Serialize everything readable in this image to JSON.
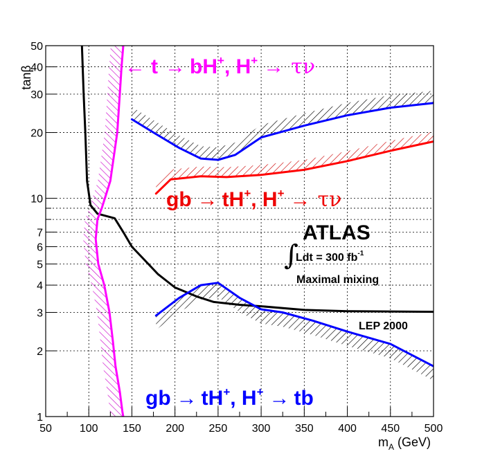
{
  "chart_data": {
    "type": "line",
    "xlabel_main": "m",
    "xlabel_sub": "A",
    "xlabel_unit": " (GeV)",
    "ylabel": "tanβ",
    "xlim": [
      50,
      500
    ],
    "ylim": [
      1,
      50
    ],
    "y_scale": "log",
    "grid": true,
    "x_ticks": [
      50,
      100,
      150,
      200,
      250,
      300,
      350,
      400,
      450,
      500
    ],
    "y_ticks": [
      1,
      2,
      3,
      4,
      5,
      6,
      7,
      10,
      20,
      30,
      40,
      50
    ],
    "series": [
      {
        "color": "#000000",
        "points": [
          [
            92,
            50
          ],
          [
            94,
            30
          ],
          [
            96,
            20
          ],
          [
            98,
            12
          ],
          [
            102,
            9.3
          ],
          [
            110,
            8.5
          ],
          [
            130,
            8.1
          ],
          [
            140,
            7
          ],
          [
            150,
            6
          ],
          [
            165,
            5.2
          ],
          [
            180,
            4.5
          ],
          [
            200,
            3.9
          ],
          [
            225,
            3.55
          ],
          [
            245,
            3.35
          ],
          [
            275,
            3.25
          ],
          [
            300,
            3.2
          ],
          [
            350,
            3.08
          ],
          [
            400,
            3.04
          ],
          [
            500,
            3.02
          ]
        ]
      },
      {
        "color": "#ff00ff",
        "points": [
          [
            140,
            50
          ],
          [
            138,
            40
          ],
          [
            136,
            30
          ],
          [
            133,
            20
          ],
          [
            125,
            12
          ],
          [
            115,
            9
          ],
          [
            110,
            8
          ],
          [
            108,
            6.5
          ],
          [
            111,
            5
          ],
          [
            118,
            4
          ],
          [
            124,
            3
          ],
          [
            128,
            2.2
          ],
          [
            131,
            1.7
          ],
          [
            136,
            1.3
          ],
          [
            139,
            1.05
          ],
          [
            140,
            1
          ]
        ]
      },
      {
        "color": "#0000ff",
        "points": [
          [
            150,
            23
          ],
          [
            175,
            20
          ],
          [
            205,
            17
          ],
          [
            230,
            15.2
          ],
          [
            250,
            15
          ],
          [
            270,
            15.8
          ],
          [
            300,
            19
          ],
          [
            350,
            21.5
          ],
          [
            400,
            24
          ],
          [
            450,
            26
          ],
          [
            500,
            27.3
          ]
        ]
      },
      {
        "color": "#ff0000",
        "points": [
          [
            178,
            10.5
          ],
          [
            195,
            12.2
          ],
          [
            230,
            12.6
          ],
          [
            260,
            12.5
          ],
          [
            300,
            12.8
          ],
          [
            350,
            13.5
          ],
          [
            400,
            14.8
          ],
          [
            450,
            16.5
          ],
          [
            500,
            18.2
          ]
        ]
      },
      {
        "color": "#0000ff",
        "points": [
          [
            178,
            2.9
          ],
          [
            205,
            3.5
          ],
          [
            230,
            4
          ],
          [
            250,
            4.1
          ],
          [
            275,
            3.5
          ],
          [
            300,
            3.1
          ],
          [
            325,
            3
          ],
          [
            360,
            2.75
          ],
          [
            400,
            2.45
          ],
          [
            450,
            2.15
          ],
          [
            500,
            1.7
          ]
        ]
      }
    ],
    "hatch_bands": [
      {
        "color": "#000000",
        "points": [
          [
            150,
            23
          ],
          [
            175,
            20
          ],
          [
            205,
            17
          ],
          [
            230,
            15.2
          ],
          [
            250,
            15
          ],
          [
            270,
            15.8
          ],
          [
            300,
            19
          ],
          [
            350,
            21.5
          ],
          [
            400,
            24
          ],
          [
            450,
            26
          ],
          [
            500,
            27.3
          ]
        ],
        "dy_factor": 1.14
      },
      {
        "color": "#cc0000",
        "points": [
          [
            178,
            10.5
          ],
          [
            195,
            12.2
          ],
          [
            230,
            12.6
          ],
          [
            260,
            12.5
          ],
          [
            300,
            12.8
          ],
          [
            350,
            13.5
          ],
          [
            400,
            14.8
          ],
          [
            450,
            16.5
          ],
          [
            500,
            18.2
          ]
        ],
        "dy_factor": 1.11
      },
      {
        "color": "#000000",
        "points": [
          [
            178,
            2.9
          ],
          [
            205,
            3.5
          ],
          [
            230,
            4
          ],
          [
            250,
            4.1
          ],
          [
            275,
            3.5
          ],
          [
            300,
            3.1
          ],
          [
            325,
            3
          ],
          [
            360,
            2.75
          ],
          [
            400,
            2.45
          ],
          [
            450,
            2.15
          ],
          [
            500,
            1.7
          ]
        ],
        "dy_factor": 0.86
      },
      {
        "color": "#cc00cc",
        "points": [
          [
            140,
            50
          ],
          [
            138,
            40
          ],
          [
            136,
            30
          ],
          [
            133,
            20
          ],
          [
            125,
            12
          ],
          [
            115,
            9
          ],
          [
            110,
            8
          ],
          [
            108,
            6.5
          ],
          [
            111,
            5
          ],
          [
            118,
            4
          ],
          [
            124,
            3
          ],
          [
            128,
            2.2
          ],
          [
            131,
            1.7
          ],
          [
            136,
            1.3
          ],
          [
            139,
            1.05
          ],
          [
            140,
            1
          ]
        ],
        "dx": -18
      }
    ]
  },
  "annotations": {
    "top_arrow": "←",
    "top_t": "t",
    "top_arrow2": "→",
    "top_bh": "bH",
    "top_sup1": "+",
    "top_comma": ", H",
    "top_sup2": "+",
    "top_arrow3": "→",
    "top_taunu": "τν",
    "mid_gb": "gb",
    "mid_arrow": "→",
    "mid_th": "tH",
    "mid_sup1": "+",
    "mid_comma": ", H",
    "mid_sup2": "+",
    "mid_arrow2": "→",
    "mid_taunu": "τν",
    "bot_gb": "gb",
    "bot_arrow": "→",
    "bot_th": "tH",
    "bot_sup1": "+",
    "bot_comma": ", H",
    "bot_sup2": "+",
    "bot_arrow2": "→",
    "bot_tb": "tb",
    "atlas": "ATLAS",
    "lumi": "Ldt = 300 fb",
    "lumi_sup": "-1",
    "mixing": "Maximal mixing",
    "lep": "LEP 2000"
  }
}
